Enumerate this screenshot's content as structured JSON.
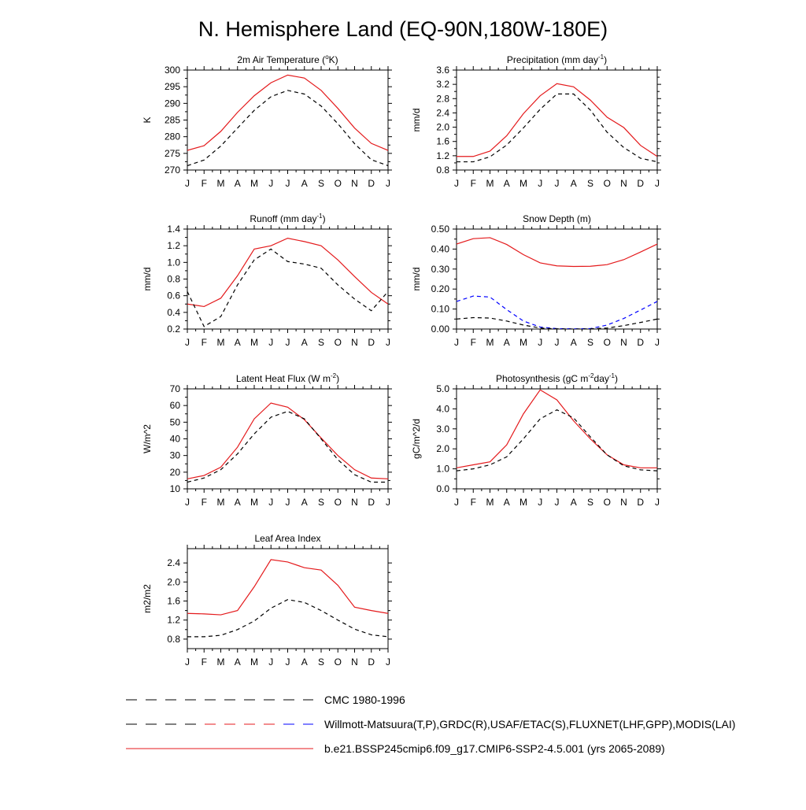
{
  "title": "N. Hemisphere Land (EQ-90N,180W-180E)",
  "months": [
    "J",
    "F",
    "M",
    "A",
    "M",
    "J",
    "J",
    "A",
    "S",
    "O",
    "N",
    "D",
    "J"
  ],
  "legend": [
    {
      "label": "CMC 1980-1996",
      "style": "dash",
      "colors": [
        "#000000"
      ]
    },
    {
      "label": "Willmott-Matsuura(T,P),GRDC(R),USAF/ETAC(S),FLUXNET(LHF,GPP),MODIS(LAI)",
      "style": "dash",
      "colors": [
        "#000000",
        "#e41a1c",
        "#0000ff"
      ]
    },
    {
      "label": "b.e21.BSSP245cmip6.f09_g17.CMIP6-SSP2-4.5.001 (yrs 2065-2089)",
      "style": "solid",
      "colors": [
        "#e41a1c"
      ]
    }
  ],
  "chart_data": [
    {
      "type": "line",
      "title": {
        "base": "2m Air Temperature (",
        "sup": "o",
        "end": "K)"
      },
      "ylabel": "K",
      "ylim": [
        270,
        300
      ],
      "yticks": [
        "270",
        "275",
        "280",
        "285",
        "290",
        "295",
        "300"
      ],
      "x": [
        "J",
        "F",
        "M",
        "A",
        "M",
        "J",
        "J",
        "A",
        "S",
        "O",
        "N",
        "D",
        "J"
      ],
      "series": [
        {
          "color": "#e41a1c",
          "dash": "solid",
          "values": [
            275.9,
            277.3,
            281.6,
            287.3,
            292.3,
            296.2,
            298.5,
            297.6,
            293.9,
            288.5,
            282.6,
            278.0,
            275.9
          ]
        },
        {
          "color": "#000000",
          "dash": "dash",
          "values": [
            271.3,
            273.0,
            277.2,
            282.6,
            287.9,
            292.0,
            293.9,
            292.8,
            289.2,
            283.9,
            277.9,
            273.1,
            271.3
          ]
        }
      ]
    },
    {
      "type": "line",
      "title": {
        "base": "Precipitation (mm day",
        "sup": "-1",
        "end": ")"
      },
      "ylabel": "mm/d",
      "ylim": [
        0.8,
        3.6
      ],
      "yticks": [
        "0.8",
        "1.2",
        "1.6",
        "2.0",
        "2.4",
        "2.8",
        "3.2",
        "3.6"
      ],
      "x": [
        "J",
        "F",
        "M",
        "A",
        "M",
        "J",
        "J",
        "A",
        "S",
        "O",
        "N",
        "D",
        "J"
      ],
      "series": [
        {
          "color": "#e41a1c",
          "dash": "solid",
          "values": [
            1.18,
            1.18,
            1.33,
            1.76,
            2.38,
            2.88,
            3.22,
            3.13,
            2.76,
            2.28,
            1.99,
            1.49,
            1.18
          ]
        },
        {
          "color": "#000000",
          "dash": "dash",
          "values": [
            1.03,
            1.03,
            1.17,
            1.5,
            1.98,
            2.5,
            2.93,
            2.93,
            2.48,
            1.86,
            1.43,
            1.13,
            1.03
          ]
        }
      ]
    },
    {
      "type": "line",
      "title": {
        "base": "Runoff (mm day",
        "sup": "-1",
        "end": ")"
      },
      "ylabel": "mm/d",
      "ylim": [
        0.2,
        1.4
      ],
      "yticks": [
        "0.2",
        "0.4",
        "0.6",
        "0.8",
        "1.0",
        "1.2",
        "1.4"
      ],
      "x": [
        "J",
        "F",
        "M",
        "A",
        "M",
        "J",
        "J",
        "A",
        "S",
        "O",
        "N",
        "D",
        "J"
      ],
      "series": [
        {
          "color": "#e41a1c",
          "dash": "solid",
          "values": [
            0.5,
            0.47,
            0.57,
            0.84,
            1.16,
            1.2,
            1.29,
            1.25,
            1.2,
            1.03,
            0.83,
            0.64,
            0.5
          ]
        },
        {
          "color": "#000000",
          "dash": "dash",
          "values": [
            0.65,
            0.23,
            0.35,
            0.73,
            1.03,
            1.16,
            1.01,
            0.98,
            0.93,
            0.73,
            0.56,
            0.42,
            0.65
          ]
        }
      ]
    },
    {
      "type": "line",
      "title": {
        "base": "Snow Depth (m)",
        "sup": "",
        "end": ""
      },
      "ylabel": "mm/d",
      "ylim": [
        0.0,
        0.5
      ],
      "yticks": [
        "0.00",
        "0.10",
        "0.20",
        "0.30",
        "0.40",
        "0.50"
      ],
      "x": [
        "J",
        "F",
        "M",
        "A",
        "M",
        "J",
        "J",
        "A",
        "S",
        "O",
        "N",
        "D",
        "J"
      ],
      "series": [
        {
          "color": "#e41a1c",
          "dash": "solid",
          "values": [
            0.425,
            0.452,
            0.457,
            0.423,
            0.372,
            0.331,
            0.316,
            0.313,
            0.314,
            0.322,
            0.347,
            0.385,
            0.425
          ]
        },
        {
          "color": "#0000ff",
          "dash": "dash",
          "values": [
            0.138,
            0.165,
            0.16,
            0.097,
            0.04,
            0.01,
            0.002,
            0.001,
            0.002,
            0.02,
            0.053,
            0.095,
            0.138
          ]
        },
        {
          "color": "#000000",
          "dash": "dash",
          "values": [
            0.05,
            0.057,
            0.055,
            0.04,
            0.02,
            0.005,
            0.001,
            0.0,
            0.001,
            0.005,
            0.017,
            0.033,
            0.05
          ]
        }
      ]
    },
    {
      "type": "line",
      "title": {
        "base": "Latent Heat Flux (W m",
        "sup": "-2",
        "end": ")"
      },
      "ylabel": "W/m^2",
      "ylim": [
        10,
        70
      ],
      "yticks": [
        "10",
        "20",
        "30",
        "40",
        "50",
        "60",
        "70"
      ],
      "x": [
        "J",
        "F",
        "M",
        "A",
        "M",
        "J",
        "J",
        "A",
        "S",
        "O",
        "N",
        "D",
        "J"
      ],
      "series": [
        {
          "color": "#e41a1c",
          "dash": "solid",
          "values": [
            16.0,
            18.0,
            23.0,
            35.0,
            52.0,
            61.5,
            59.0,
            51.5,
            40.5,
            30.0,
            21.5,
            16.5,
            16.0
          ]
        },
        {
          "color": "#000000",
          "dash": "dash",
          "values": [
            14.0,
            16.5,
            21.5,
            31.0,
            43.0,
            53.0,
            56.5,
            52.0,
            40.0,
            27.5,
            18.5,
            14.0,
            14.0
          ]
        }
      ]
    },
    {
      "type": "line",
      "title": {
        "base": "Photosynthesis (gC m",
        "sup": "-2",
        "end": "day",
        "sup2": "-1",
        "end2": ")"
      },
      "ylabel": "gC/m^2/d",
      "ylim": [
        0.0,
        5.0
      ],
      "yticks": [
        "0.0",
        "1.0",
        "2.0",
        "3.0",
        "4.0",
        "5.0"
      ],
      "x": [
        "J",
        "F",
        "M",
        "A",
        "M",
        "J",
        "J",
        "A",
        "S",
        "O",
        "N",
        "D",
        "J"
      ],
      "series": [
        {
          "color": "#e41a1c",
          "dash": "solid",
          "values": [
            1.05,
            1.2,
            1.35,
            2.2,
            3.75,
            4.95,
            4.45,
            3.4,
            2.5,
            1.7,
            1.2,
            1.05,
            1.05
          ]
        },
        {
          "color": "#000000",
          "dash": "dash",
          "values": [
            0.9,
            1.0,
            1.2,
            1.6,
            2.5,
            3.5,
            3.95,
            3.55,
            2.6,
            1.7,
            1.15,
            0.95,
            0.9
          ]
        }
      ]
    },
    {
      "type": "line",
      "title": {
        "base": "Leaf Area Index",
        "sup": "",
        "end": ""
      },
      "ylabel": "m2/m2",
      "ylim": [
        0.6,
        2.7
      ],
      "yticks": [
        "0.8",
        "1.2",
        "1.6",
        "2.0",
        "2.4"
      ],
      "x": [
        "J",
        "F",
        "M",
        "A",
        "M",
        "J",
        "J",
        "A",
        "S",
        "O",
        "N",
        "D",
        "J"
      ],
      "series": [
        {
          "color": "#e41a1c",
          "dash": "solid",
          "values": [
            1.34,
            1.33,
            1.31,
            1.4,
            1.9,
            2.47,
            2.42,
            2.3,
            2.25,
            1.93,
            1.47,
            1.4,
            1.34
          ]
        },
        {
          "color": "#000000",
          "dash": "dash",
          "values": [
            0.85,
            0.85,
            0.88,
            1.0,
            1.18,
            1.45,
            1.63,
            1.57,
            1.4,
            1.2,
            1.01,
            0.89,
            0.85
          ]
        }
      ]
    }
  ]
}
